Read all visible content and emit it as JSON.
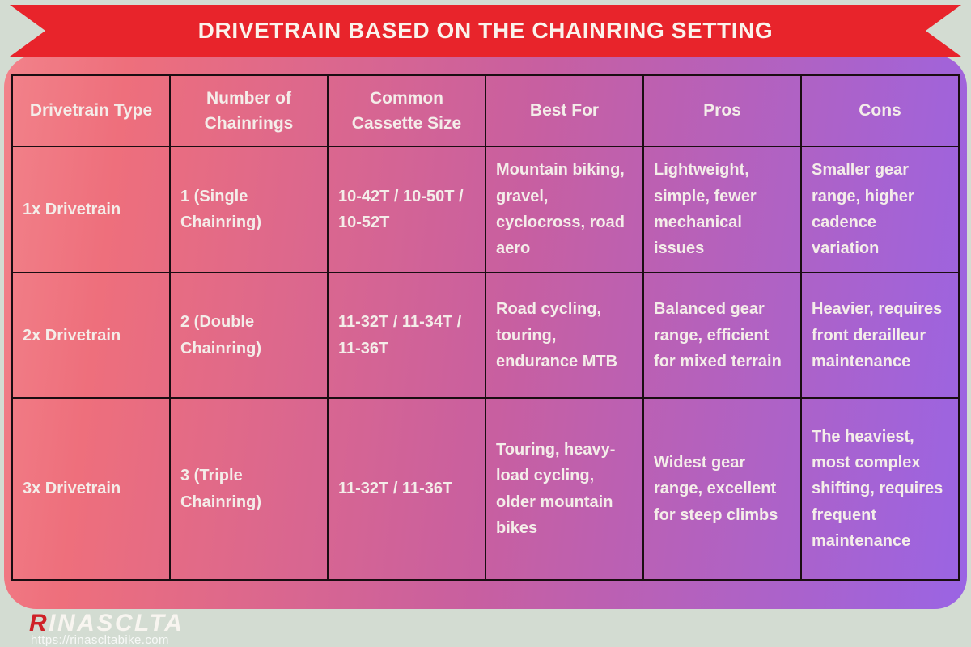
{
  "page": {
    "background_color": "#d3dcd2"
  },
  "banner": {
    "title": "DRIVETRAIN BASED ON THE CHAINRING SETTING",
    "ribbon_color": "#e8242b",
    "text_color": "#faf3ec"
  },
  "panel": {
    "gradient_left": "#ee6f7c",
    "gradient_mid": "#c85fa0",
    "gradient_right": "#9a64e4",
    "border_color": "#1a0d12",
    "cell_text_color": "#f4ede9"
  },
  "chart_data": {
    "type": "table",
    "title": "DRIVETRAIN BASED ON THE CHAINRING SETTING",
    "columns": [
      "Drivetrain Type",
      "Number of Chainrings",
      "Common Cassette Size",
      "Best For",
      "Pros",
      "Cons"
    ],
    "rows": [
      [
        "1x Drivetrain",
        "1 (Single Chainring)",
        "10-42T / 10-50T / 10-52T",
        "Mountain biking, gravel, cyclocross, road aero",
        "Lightweight, simple, fewer mechanical issues",
        "Smaller gear range, higher cadence variation"
      ],
      [
        "2x Drivetrain",
        "2 (Double Chainring)",
        "11-32T / 11-34T / 11-36T",
        "Road cycling, touring, endurance MTB",
        "Balanced gear range, efficient for mixed terrain",
        "Heavier, requires front derailleur maintenance"
      ],
      [
        "3x Drivetrain",
        "3 (Triple Chainring)",
        "11-32T / 11-36T",
        "Touring, heavy-load cycling, older mountain bikes",
        "Widest gear range, excellent for steep climbs",
        "The heaviest, most complex shifting, requires frequent maintenance"
      ]
    ]
  },
  "footer": {
    "brand_initial": "R",
    "brand_rest": "INASCLTA",
    "brand_initial_color": "#cf2127",
    "url": "https://rinascltabike.com"
  }
}
